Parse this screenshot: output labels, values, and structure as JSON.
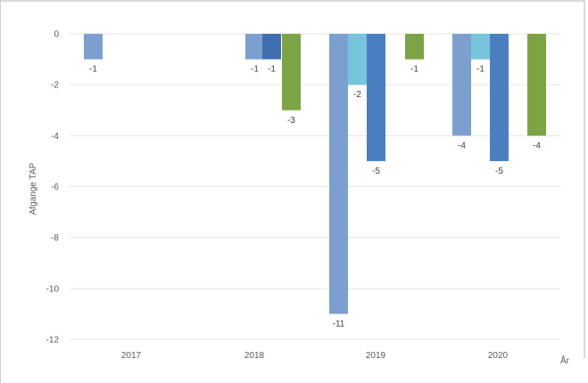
{
  "chart_data": {
    "type": "bar",
    "categories": [
      "2017",
      "2018",
      "2019",
      "2020"
    ],
    "xlabel": "År",
    "ylabel": "Afgange TAP",
    "ylim": [
      -12,
      0
    ],
    "yticks": [
      0,
      -2,
      -4,
      -6,
      -8,
      -10,
      -12
    ],
    "grid": true,
    "series": [
      {
        "values": [
          -1,
          -1,
          -11,
          -4
        ],
        "color": "#7ba0d0"
      },
      {
        "values": [
          null,
          -1,
          -2,
          -1
        ],
        "color": "#76c5dd"
      },
      {
        "values": [
          null,
          -1,
          -5,
          -5
        ],
        "color": "#4a7fc1"
      },
      {
        "values": [
          null,
          -3,
          -1,
          -4
        ],
        "color": "#7da444"
      }
    ],
    "colors": {
      "s1": "#7ba0d0",
      "s2": "#76c5dd",
      "s3": "#4a7fc1",
      "s3b": "#3f6fae",
      "s4": "#7da444"
    }
  }
}
